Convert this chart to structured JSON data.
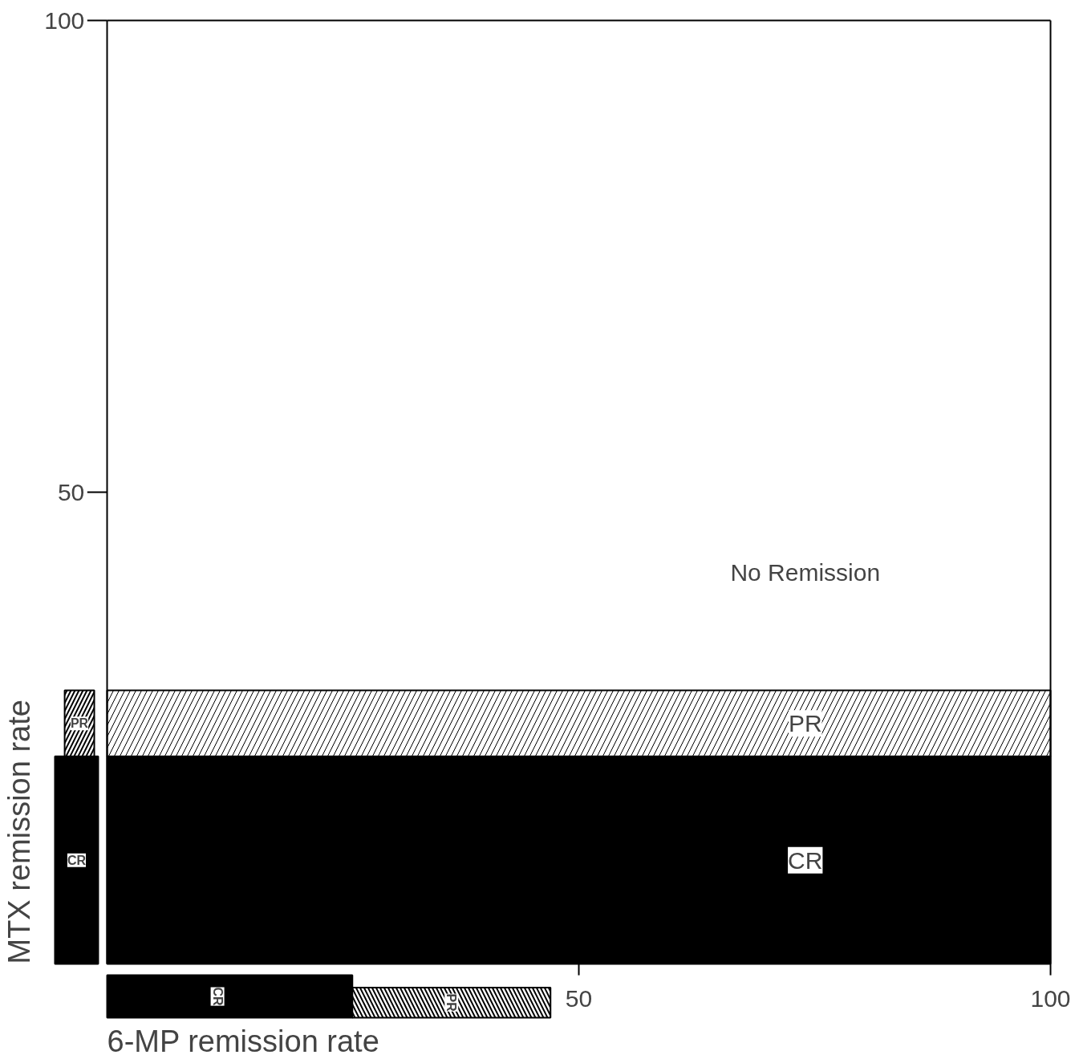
{
  "chart_data": [
    {
      "type": "bar",
      "stacked": true,
      "categories": [
        null
      ],
      "ylabel": "MTX remission rate",
      "ylim": [
        0,
        100
      ],
      "yticks": [
        50,
        100
      ],
      "annotations": [
        "No Remission"
      ],
      "series": [
        {
          "name": "CR",
          "color": "#000000",
          "values": [
            22
          ]
        },
        {
          "name": "PR",
          "color": "#ffffff",
          "values": [
            7
          ]
        }
      ]
    },
    {
      "type": "bar",
      "stacked": true,
      "orientation": "horizontal",
      "categories": [
        null
      ],
      "xlabel": "6-MP remission rate",
      "xlim": [
        0,
        100
      ],
      "xticks": [
        50,
        100
      ],
      "series": [
        {
          "name": "CR",
          "color": "#000000",
          "values": [
            26
          ]
        },
        {
          "name": "PR",
          "color": "#ffffff",
          "values": [
            21
          ]
        }
      ]
    }
  ]
}
